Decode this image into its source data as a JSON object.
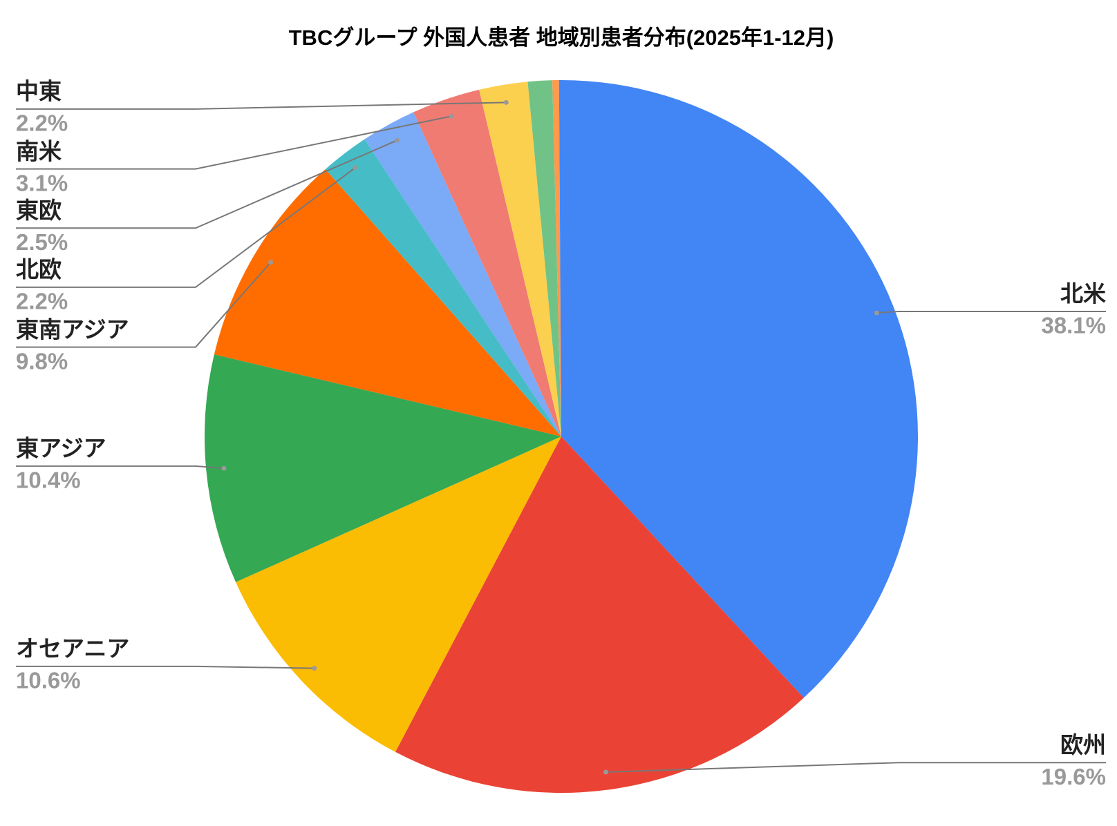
{
  "chart_data": {
    "type": "pie",
    "title": "TBCグループ 外国人患者 地域別患者分布(2025年1-12月)",
    "categories": [
      "北米",
      "欧州",
      "オセアニア",
      "東アジア",
      "東南アジア",
      "北欧",
      "東欧",
      "南米",
      "中東",
      null,
      null,
      null
    ],
    "values": [
      38.1,
      19.6,
      10.6,
      10.4,
      9.8,
      2.2,
      2.5,
      3.1,
      2.2,
      1.1,
      0.3,
      0.1
    ],
    "value_labels": [
      "38.1%",
      "19.6%",
      "10.6%",
      "10.4%",
      "9.8%",
      "2.2%",
      "2.5%",
      "3.1%",
      "2.2%",
      null,
      null,
      null
    ],
    "colors": [
      "#4285f4",
      "#ea4335",
      "#fbbc04",
      "#34a853",
      "#ff6d01",
      "#46bdc6",
      "#7baaf7",
      "#f07b72",
      "#fcd04f",
      "#71c287",
      "#ff994d",
      "#4285f4"
    ]
  }
}
